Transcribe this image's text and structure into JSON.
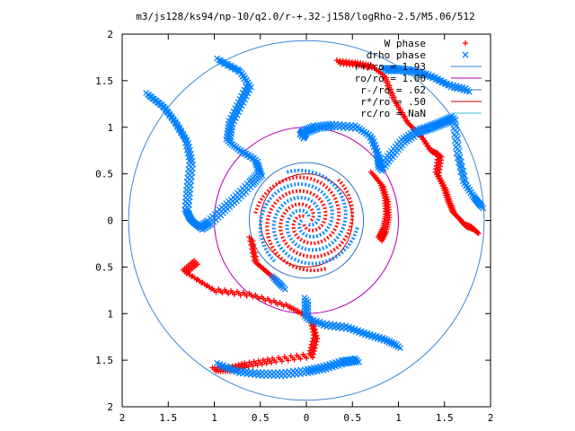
{
  "chart_data": {
    "type": "scatter",
    "title": "m3/js128/ks94/np-10/q2.0/r-+.32-j158/logRho-2.5/M5.06/512",
    "xlabel": "",
    "ylabel": "",
    "xlim": [
      -2,
      2
    ],
    "ylim": [
      -2,
      2
    ],
    "x_ticks": [
      "2",
      "1.5",
      "1",
      "0.5",
      "0",
      "0.5",
      "1",
      "1.5",
      "2"
    ],
    "y_ticks": [
      "2",
      "1.5",
      "1",
      "0.5",
      "0",
      "0.5",
      "1",
      "1.5",
      "2"
    ],
    "grid": false,
    "legend_position": "top-right",
    "legend": [
      {
        "label": "W phase",
        "kind": "point",
        "marker": "plus",
        "color": "#ff0000"
      },
      {
        "label": "drho phase",
        "kind": "point",
        "marker": "cross",
        "color": "#0080ff"
      },
      {
        "label": "r+/ro = 1.93",
        "kind": "circle",
        "radius": 1.93,
        "color": "#3a86d6"
      },
      {
        "label": "ro/ro = 1.00",
        "kind": "circle",
        "radius": 1.0,
        "color": "#b000b0"
      },
      {
        "label": "r-/ro = .62",
        "kind": "circle",
        "radius": 0.62,
        "color": "#2a74c2"
      },
      {
        "label": "r*/ro = .50",
        "kind": "circle",
        "radius": 0.5,
        "color": "#c00000"
      },
      {
        "label": "rc/ro = NaN",
        "kind": "circle",
        "radius": null,
        "color": "#2ec8d8"
      }
    ],
    "series": [
      {
        "name": "W phase",
        "color": "#ff0000",
        "arms": [
          [
            [
              0.35,
              1.7
            ],
            [
              0.55,
              1.68
            ],
            [
              0.72,
              1.65
            ],
            [
              0.85,
              1.55
            ],
            [
              0.95,
              1.3
            ],
            [
              1.1,
              1.05
            ],
            [
              1.25,
              0.9
            ],
            [
              1.35,
              0.75
            ],
            [
              1.45,
              0.7
            ],
            [
              1.42,
              0.5
            ],
            [
              1.5,
              0.35
            ],
            [
              1.55,
              0.2
            ],
            [
              1.6,
              0.08
            ],
            [
              1.68,
              0.0
            ],
            [
              1.72,
              -0.05
            ],
            [
              1.8,
              -0.08
            ],
            [
              1.85,
              -0.12
            ]
          ],
          [
            [
              0.72,
              0.5
            ],
            [
              0.82,
              0.38
            ],
            [
              0.87,
              0.22
            ],
            [
              0.88,
              0.05
            ],
            [
              0.85,
              -0.1
            ],
            [
              0.8,
              -0.2
            ]
          ],
          [
            [
              -1.2,
              -0.45
            ],
            [
              -1.32,
              -0.55
            ],
            [
              -1.0,
              -0.75
            ],
            [
              -0.6,
              -0.8
            ],
            [
              -0.2,
              -0.92
            ],
            [
              0.05,
              -1.05
            ],
            [
              0.1,
              -1.25
            ],
            [
              0.05,
              -1.45
            ],
            [
              -0.35,
              -1.5
            ],
            [
              -0.65,
              -1.55
            ],
            [
              -0.85,
              -1.6
            ],
            [
              -1.0,
              -1.6
            ]
          ],
          [
            [
              -0.35,
              -0.62
            ],
            [
              -0.55,
              -0.45
            ],
            [
              -0.6,
              -0.2
            ]
          ]
        ]
      },
      {
        "name": "drho phase",
        "color": "#0080ff",
        "arms": [
          [
            [
              -0.95,
              1.72
            ],
            [
              -0.72,
              1.6
            ],
            [
              -0.62,
              1.45
            ],
            [
              -0.72,
              1.25
            ],
            [
              -0.82,
              1.05
            ],
            [
              -0.85,
              0.85
            ],
            [
              -0.72,
              0.75
            ],
            [
              -0.55,
              0.65
            ],
            [
              -0.5,
              0.5
            ],
            [
              -0.6,
              0.4
            ],
            [
              -0.75,
              0.25
            ],
            [
              -0.9,
              0.12
            ],
            [
              -1.05,
              -0.02
            ],
            [
              -1.15,
              -0.08
            ],
            [
              -1.25,
              0.0
            ],
            [
              -1.3,
              0.1
            ],
            [
              -1.28,
              0.35
            ],
            [
              -1.25,
              0.62
            ],
            [
              -1.3,
              0.85
            ],
            [
              -1.42,
              1.05
            ],
            [
              -1.55,
              1.22
            ],
            [
              -1.72,
              1.35
            ]
          ],
          [
            [
              -0.05,
              0.9
            ],
            [
              -0.02,
              0.95
            ],
            [
              0.1,
              1.0
            ],
            [
              0.3,
              1.02
            ],
            [
              0.55,
              1.0
            ],
            [
              0.7,
              0.9
            ],
            [
              0.78,
              0.7
            ],
            [
              0.8,
              0.55
            ],
            [
              0.92,
              0.7
            ],
            [
              1.05,
              0.85
            ],
            [
              1.2,
              0.95
            ],
            [
              1.35,
              1.0
            ],
            [
              1.48,
              1.05
            ],
            [
              1.6,
              1.1
            ],
            [
              1.65,
              0.7
            ],
            [
              1.72,
              0.4
            ],
            [
              1.82,
              0.25
            ],
            [
              1.9,
              0.15
            ]
          ],
          [
            [
              1.75,
              1.4
            ],
            [
              1.55,
              1.45
            ],
            [
              1.35,
              1.55
            ],
            [
              1.18,
              1.6
            ],
            [
              1.0,
              1.62
            ],
            [
              0.85,
              1.62
            ]
          ],
          [
            [
              0.0,
              -0.85
            ],
            [
              0.0,
              -1.05
            ],
            [
              0.2,
              -1.12
            ],
            [
              0.45,
              -1.15
            ],
            [
              0.65,
              -1.22
            ],
            [
              0.85,
              -1.28
            ],
            [
              1.0,
              -1.35
            ]
          ],
          [
            [
              -0.95,
              -1.55
            ],
            [
              -0.75,
              -1.62
            ],
            [
              -0.5,
              -1.65
            ],
            [
              -0.25,
              -1.65
            ],
            [
              0.0,
              -1.62
            ],
            [
              0.2,
              -1.58
            ],
            [
              0.4,
              -1.52
            ],
            [
              0.55,
              -1.5
            ]
          ],
          [
            [
              -0.35,
              -0.62
            ],
            [
              -0.25,
              -0.72
            ]
          ]
        ]
      }
    ]
  }
}
